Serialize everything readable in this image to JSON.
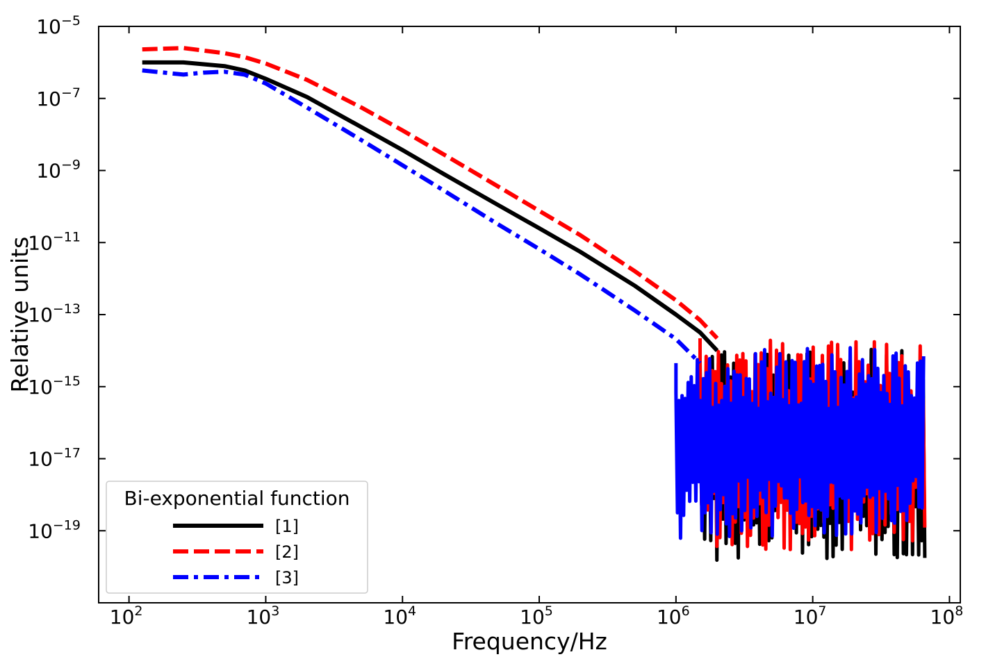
{
  "chart_data": {
    "type": "line",
    "xscale": "log",
    "yscale": "log",
    "xlabel": "Frequency/Hz",
    "ylabel": "Relative units",
    "xlim": [
      60,
      120000000
    ],
    "ylim": [
      1e-21,
      1e-05
    ],
    "grid": false,
    "x_ticks": [
      "10^2",
      "10^3",
      "10^4",
      "10^5",
      "10^6",
      "10^7",
      "10^8"
    ],
    "y_ticks": [
      "10^-5",
      "10^-7",
      "10^-9",
      "10^-11",
      "10^-13",
      "10^-15",
      "10^-17",
      "10^-19"
    ],
    "legend": {
      "title": "Bi-exponential function",
      "position": "lower-left"
    },
    "series": [
      {
        "name": "[1]",
        "color": "#000000",
        "style": "solid",
        "x": [
          125,
          250,
          500,
          700,
          1000,
          2000,
          5000,
          10000,
          20000,
          50000,
          100000,
          200000,
          500000,
          1000000,
          1500000,
          2000000
        ],
        "y": [
          1e-06,
          1e-06,
          7.9e-07,
          6e-07,
          3.5e-07,
          1.1e-07,
          1.6e-08,
          3.7e-09,
          8e-10,
          1.1e-10,
          2.5e-11,
          5.5e-12,
          6.3e-13,
          1e-13,
          3.2e-14,
          1e-14
        ],
        "noise": {
          "from": 1500000,
          "to": 66000000,
          "min": 1.5e-20,
          "max": 1.1e-14
        }
      },
      {
        "name": "[2]",
        "color": "#ff0000",
        "style": "dashed",
        "x": [
          125,
          250,
          500,
          700,
          1000,
          2000,
          5000,
          10000,
          20000,
          50000,
          100000,
          200000,
          500000,
          1000000,
          1500000,
          2000000
        ],
        "y": [
          2.3e-06,
          2.5e-06,
          1.8e-06,
          1.4e-06,
          9.3e-07,
          3.3e-07,
          5.6e-08,
          1.3e-08,
          2.8e-09,
          3.6e-10,
          7.6e-11,
          1.6e-11,
          1.6e-12,
          2.5e-13,
          7e-14,
          2.2e-14
        ],
        "noise": {
          "from": 1500000,
          "to": 66000000,
          "min": 3e-20,
          "max": 2e-14
        }
      },
      {
        "name": "[3]",
        "color": "#0000ff",
        "style": "dashdot",
        "x": [
          125,
          250,
          350,
          500,
          700,
          1000,
          2000,
          5000,
          10000,
          20000,
          50000,
          100000,
          200000,
          500000,
          1000000,
          1500000
        ],
        "y": [
          6e-07,
          4.6e-07,
          5.2e-07,
          5.5e-07,
          4.6e-07,
          2.6e-07,
          5.6e-08,
          7e-09,
          1.4e-09,
          2.8e-10,
          3.2e-11,
          6.6e-12,
          1.3e-12,
          1.3e-13,
          2.1e-14,
          4.5e-15
        ],
        "noise": {
          "from": 1000000,
          "to": 66000000,
          "min": 6e-20,
          "max": 1.3e-14
        }
      }
    ]
  }
}
